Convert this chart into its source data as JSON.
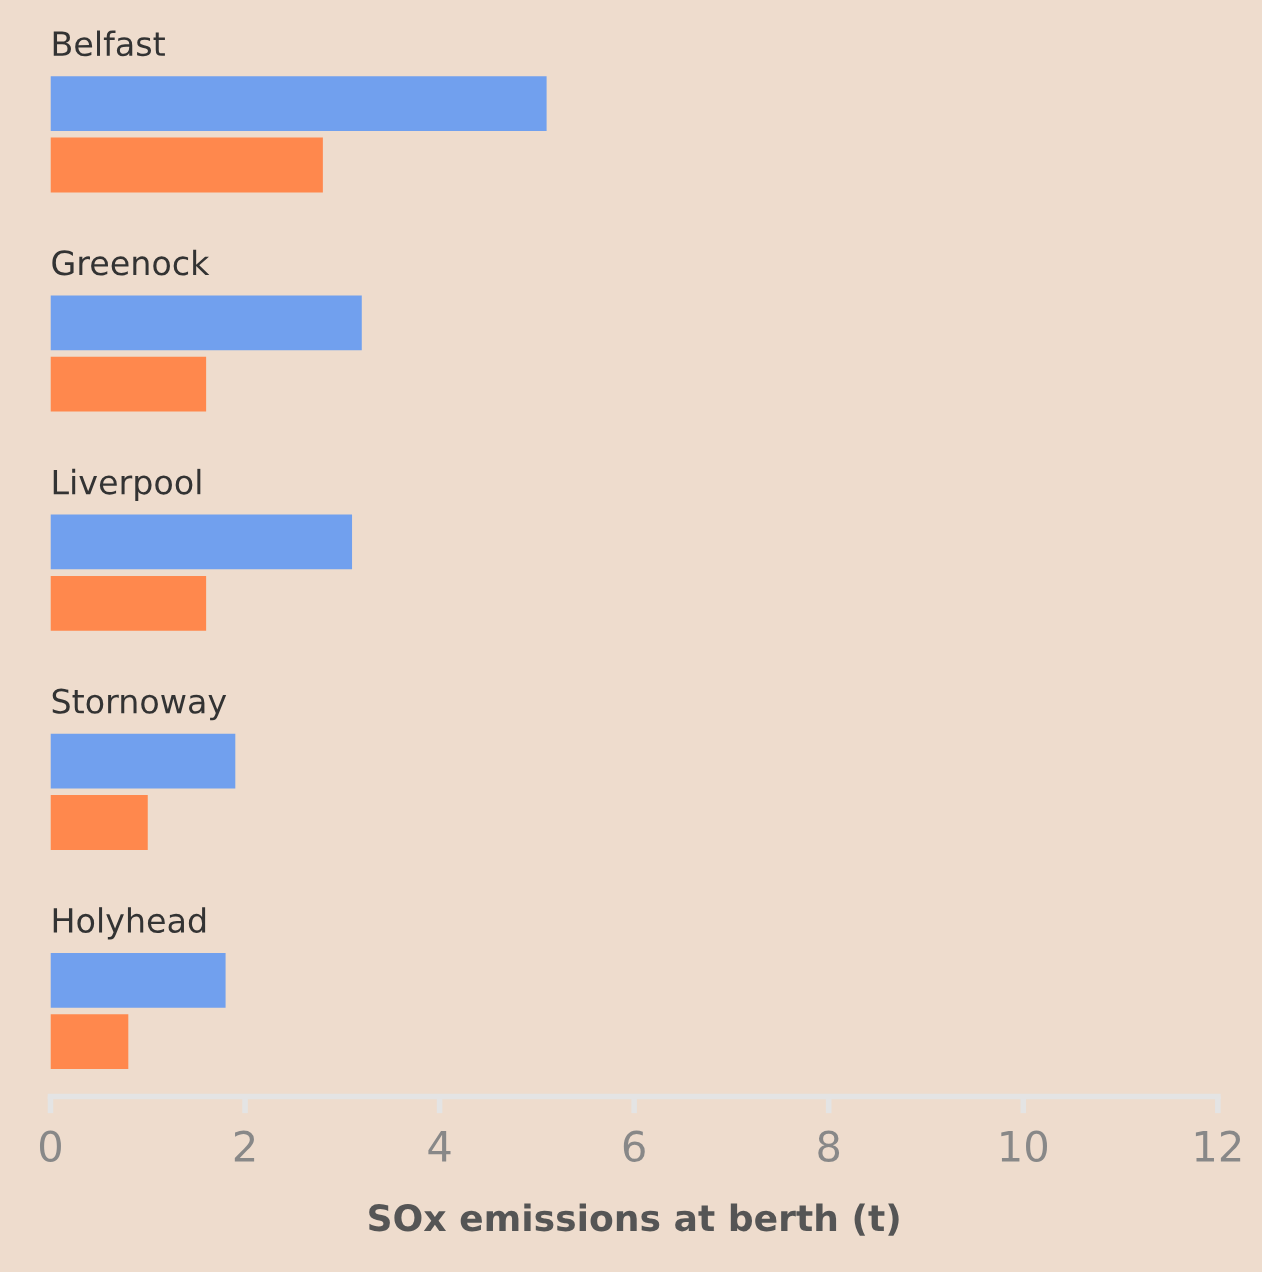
{
  "chart_data": {
    "type": "bar",
    "orientation": "horizontal",
    "xlabel": "SOx emissions at berth (t)",
    "categories": [
      "Belfast",
      "Greenock",
      "Liverpool",
      "Stornoway",
      "Holyhead"
    ],
    "series": [
      {
        "color": "#71a0ee",
        "values": [
          5.1,
          3.2,
          3.1,
          1.9,
          1.8
        ]
      },
      {
        "color": "#ff884d",
        "values": [
          2.8,
          1.6,
          1.6,
          1.0,
          0.8
        ]
      }
    ],
    "xlim": [
      0,
      12
    ],
    "xticks": [
      0,
      2,
      4,
      6,
      8,
      10,
      12
    ],
    "grid": false,
    "legend": false
  }
}
